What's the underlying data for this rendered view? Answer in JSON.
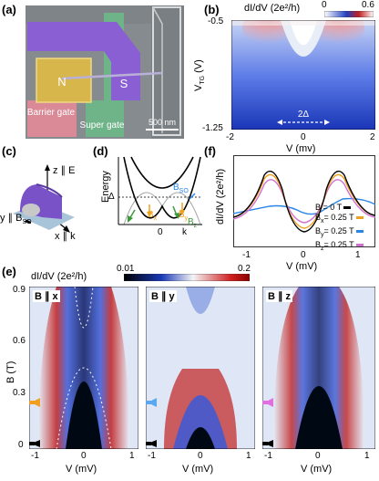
{
  "panels": {
    "a": {
      "label": "(a)",
      "regions": [
        "N",
        "S",
        "Barrier gate",
        "Super gate"
      ],
      "scalebar": "500 nm",
      "colors": {
        "normal": "#d8b84a",
        "super": "#8c5fd1",
        "barrier": "#d97a8a",
        "supergate": "#5fb07c",
        "bg": "#8a8f93"
      }
    },
    "b": {
      "label": "(b)",
      "colorbar_title": "dI/dV (2e²/h)",
      "colorbar_min": "0",
      "colorbar_max": "0.6",
      "ylabel": "V",
      "ylabel_sub": "TG",
      "ylabel_unit": " (V)",
      "xlabel": "V (mv)",
      "yticks": [
        "-0.5",
        "-1.25"
      ],
      "xticks": [
        "-2",
        "0",
        "2"
      ],
      "gap_label": "2Δ"
    },
    "c": {
      "label": "(c)",
      "axis_z": "z ∥ E",
      "axis_y": "y ∥ B",
      "axis_y_sub": "SO",
      "axis_x": "x ∥ k"
    },
    "d": {
      "label": "(d)",
      "ylabel": "Energy",
      "delta": "Δ",
      "xtick0": "0",
      "xlabel": "k",
      "bso": "B",
      "bso_sub": "SO",
      "bx": "B",
      "bx_sub": "x",
      "by": "B",
      "by_sub": "y",
      "bz": "B",
      "bz_sub": "z"
    },
    "f": {
      "label": "(f)",
      "ylabel": "dI/dV (2e²/h)",
      "xlabel": "V (mV)",
      "xticks": [
        "-1",
        "0",
        "1"
      ],
      "legend": [
        {
          "main": "B = 0 T",
          "sub": "",
          "rest": "",
          "color": "#000000"
        },
        {
          "main": "B",
          "sub": "x",
          "rest": "= 0.25 T",
          "color": "#f0a020"
        },
        {
          "main": "B",
          "sub": "y",
          "rest": "= 0.25 T",
          "color": "#2a86e6"
        },
        {
          "main": "B",
          "sub": "z",
          "rest": "= 0.25 T",
          "color": "#d070d0"
        }
      ]
    },
    "e": {
      "label": "(e)",
      "colorbar_title": "dI/dV (2e²/h)",
      "colorbar_min": "0.01",
      "colorbar_max": "0.2",
      "ylabel": "B (T)",
      "yticks": [
        "0.9",
        "0.6",
        "0.3",
        "0"
      ],
      "xlabel": "V (mV)",
      "xticks": [
        "-1",
        "0",
        "1"
      ],
      "subpanels": [
        {
          "tag": "B ∥ x",
          "arrow_color": "#f0a020"
        },
        {
          "tag": "B ∥ y",
          "arrow_color": "#5aa8f0"
        },
        {
          "tag": "B ∥ z",
          "arrow_color": "#e070e0"
        }
      ]
    }
  }
}
